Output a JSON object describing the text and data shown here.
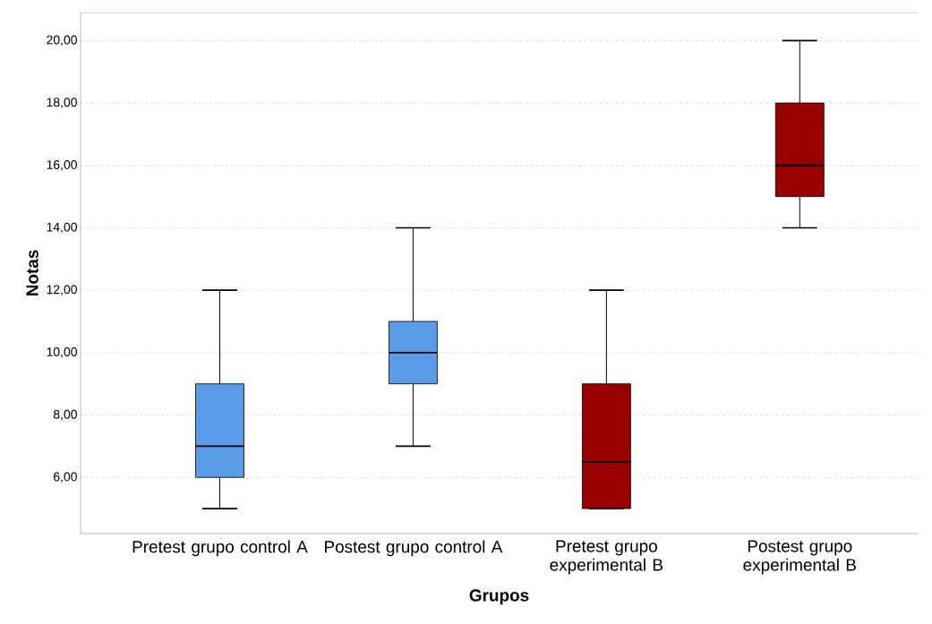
{
  "chart_data": {
    "type": "box",
    "xlabel": "Grupos",
    "ylabel": "Notas",
    "categories": [
      "Pretest grupo control A",
      "Postest grupo control A",
      "Pretest grupo experimental B",
      "Postest grupo experimental B"
    ],
    "boxes": [
      {
        "low": 5,
        "q1": 6,
        "median": 7,
        "q3": 9,
        "high": 12
      },
      {
        "low": 7,
        "q1": 9,
        "median": 10,
        "q3": 11,
        "high": 14
      },
      {
        "low": 5,
        "q1": 5,
        "median": 6.5,
        "q3": 9,
        "high": 12
      },
      {
        "low": 14,
        "q1": 15,
        "median": 16,
        "q3": 18,
        "high": 20
      }
    ],
    "colors": [
      "#5a9be6",
      "#5a9be6",
      "#990000",
      "#990000"
    ],
    "ylim": [
      4.2,
      20.9
    ],
    "yticks": [
      {
        "value": 6,
        "label": "6,00"
      },
      {
        "value": 8,
        "label": "8,00"
      },
      {
        "value": 10,
        "label": "10,00"
      },
      {
        "value": 12,
        "label": "12,00"
      },
      {
        "value": 14,
        "label": "14,00"
      },
      {
        "value": 16,
        "label": "16,00"
      },
      {
        "value": 18,
        "label": "18,00"
      },
      {
        "value": 20,
        "label": "20,00"
      }
    ],
    "grid": "y"
  }
}
